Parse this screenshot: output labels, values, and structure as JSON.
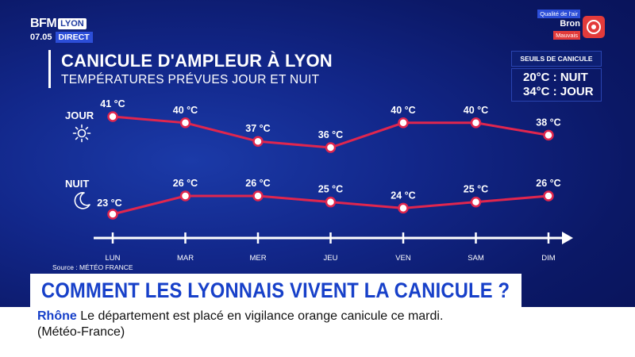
{
  "channel": {
    "brand": "BFM",
    "city": "LYON",
    "time": "07.05",
    "live": "DIRECT"
  },
  "air_quality": {
    "label": "Qualité de l'air",
    "city": "Bron",
    "status": "Mauvais"
  },
  "colors": {
    "accent": "#1740c9",
    "line": "#e0264e",
    "air_bad": "#e33b3b"
  },
  "thresholds": {
    "header": "SEUILS DE CANICULE",
    "night": "20°C : NUIT",
    "day": "34°C : JOUR"
  },
  "chart_data": {
    "type": "line",
    "title": "CANICULE D'AMPLEUR À LYON",
    "subtitle": "TEMPÉRATURES PRÉVUES JOUR ET NUIT",
    "categories": [
      "LUN",
      "MAR",
      "MER",
      "JEU",
      "VEN",
      "SAM",
      "DIM"
    ],
    "series": [
      {
        "name": "JOUR",
        "icon": "sun-icon",
        "values": [
          41,
          40,
          37,
          36,
          40,
          40,
          38
        ],
        "labels": [
          "41 °C",
          "40 °C",
          "37 °C",
          "36 °C",
          "40 °C",
          "40 °C",
          "38 °C"
        ]
      },
      {
        "name": "NUIT",
        "icon": "moon-icon",
        "values": [
          23,
          26,
          26,
          25,
          24,
          25,
          26
        ],
        "labels": [
          "23 °C",
          "26 °C",
          "26 °C",
          "25 °C",
          "24 °C",
          "25 °C",
          "26 °C"
        ]
      }
    ],
    "unit": "°C",
    "grid": false,
    "legend": "left"
  },
  "source": "Source : MÉTÉO FRANCE",
  "headline": "COMMENT LES LYONNAIS VIVENT LA CANICULE ?",
  "ticker": {
    "keyword": "Rhône",
    "line1": " Le département est placé en vigilance orange canicule ce mardi.",
    "line2": "(Météo-France)"
  }
}
